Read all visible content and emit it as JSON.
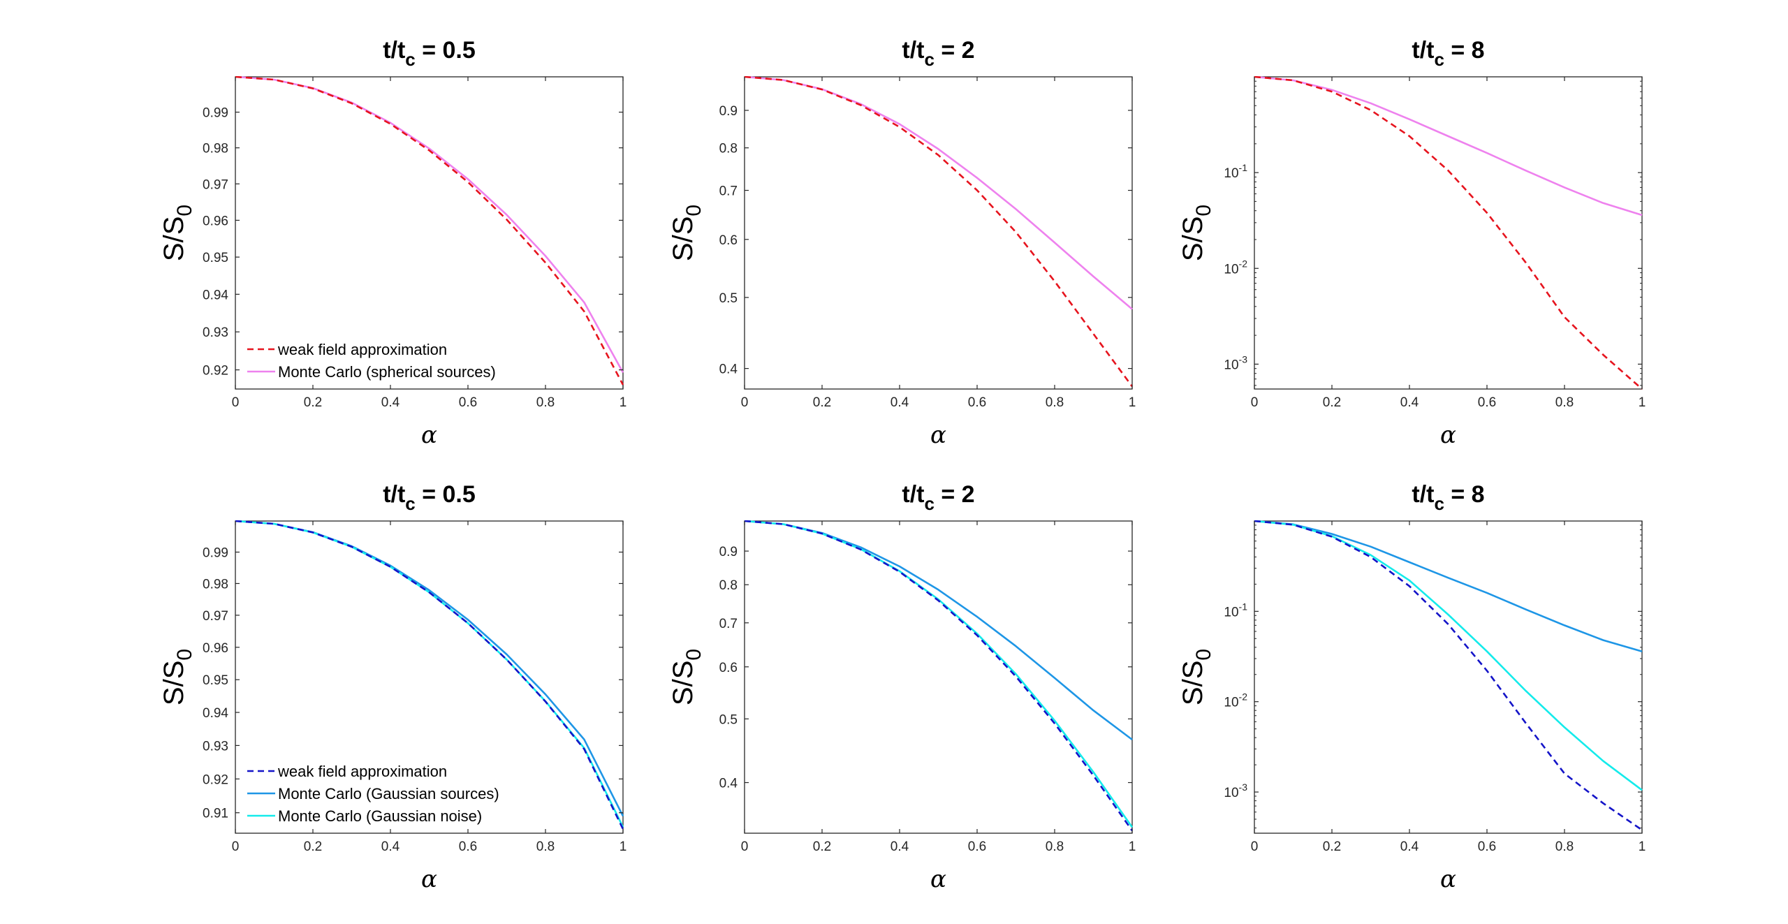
{
  "figure": {
    "xlabel": "α",
    "ylabel_main": "S/S",
    "ylabel_sub": "0",
    "title_prefix": "t/t",
    "title_sub": "c"
  },
  "chart_data": [
    {
      "type": "line",
      "title": "t/tc = 0.5",
      "title_value": "= 0.5",
      "t_over_tc": 0.5,
      "yscale": "log",
      "xlim": [
        0,
        1
      ],
      "ylim": [
        0.915,
        1.0
      ],
      "xticks": [
        0,
        0.2,
        0.4,
        0.6,
        0.8,
        1
      ],
      "xticklabels": [
        "0",
        "0.2",
        "0.4",
        "0.6",
        "0.8",
        "1"
      ],
      "yticks": [
        0.92,
        0.93,
        0.94,
        0.95,
        0.96,
        0.97,
        0.98,
        0.99
      ],
      "yticklabels": [
        "0.92",
        "0.93",
        "0.94",
        "0.95",
        "0.96",
        "0.97",
        "0.98",
        "0.99"
      ],
      "legend": "bottom-left",
      "grid": false,
      "x": [
        0,
        0.1,
        0.2,
        0.3,
        0.4,
        0.5,
        0.6,
        0.7,
        0.8,
        0.9,
        1.0
      ],
      "series": [
        {
          "name": "weak field approximation",
          "color": "#e6141e",
          "style": "dashed",
          "values": [
            1.0,
            0.9992,
            0.9967,
            0.9925,
            0.9867,
            0.9793,
            0.9705,
            0.9602,
            0.9485,
            0.9354,
            0.9161
          ]
        },
        {
          "name": "Monte Carlo (spherical sources)",
          "color": "#ee82ee",
          "style": "solid",
          "values": [
            1.0,
            0.9992,
            0.9968,
            0.9927,
            0.987,
            0.9798,
            0.9713,
            0.9615,
            0.9503,
            0.9378,
            0.9193
          ]
        }
      ]
    },
    {
      "type": "line",
      "title": "t/tc = 2",
      "title_value": "= 2",
      "t_over_tc": 2,
      "yscale": "log",
      "xlim": [
        0,
        1
      ],
      "ylim": [
        0.375,
        1.0
      ],
      "xticks": [
        0,
        0.2,
        0.4,
        0.6,
        0.8,
        1
      ],
      "xticklabels": [
        "0",
        "0.2",
        "0.4",
        "0.6",
        "0.8",
        "1"
      ],
      "yticks": [
        0.4,
        0.5,
        0.6,
        0.7,
        0.8,
        0.9
      ],
      "yticklabels": [
        "0.4",
        "0.5",
        "0.6",
        "0.7",
        "0.8",
        "0.9"
      ],
      "legend": "none",
      "grid": false,
      "x": [
        0,
        0.1,
        0.2,
        0.3,
        0.4,
        0.5,
        0.6,
        0.7,
        0.8,
        0.9,
        1.0
      ],
      "series": [
        {
          "name": "weak field approximation",
          "color": "#e6141e",
          "style": "dashed",
          "values": [
            1.0,
            0.99,
            0.961,
            0.915,
            0.854,
            0.782,
            0.7,
            0.614,
            0.526,
            0.446,
            0.378
          ]
        },
        {
          "name": "Monte Carlo (spherical sources)",
          "color": "#ee82ee",
          "style": "solid",
          "values": [
            1.0,
            0.99,
            0.962,
            0.918,
            0.862,
            0.797,
            0.728,
            0.66,
            0.594,
            0.534,
            0.482
          ]
        }
      ]
    },
    {
      "type": "line",
      "title": "t/tc = 8",
      "title_value": "= 8",
      "t_over_tc": 8,
      "yscale": "log",
      "xlim": [
        0,
        1
      ],
      "ylim": [
        0.00055,
        1.0
      ],
      "xticks": [
        0,
        0.2,
        0.4,
        0.6,
        0.8,
        1
      ],
      "xticklabels": [
        "0",
        "0.2",
        "0.4",
        "0.6",
        "0.8",
        "1"
      ],
      "yticks": [
        0.001,
        0.01,
        0.1
      ],
      "yticklabels": [
        "10-3",
        "10-2",
        "10-1"
      ],
      "yticklabel_bases": [
        "10",
        "10",
        "10"
      ],
      "yticklabel_exponents": [
        "-3",
        "-2",
        "-1"
      ],
      "legend": "none",
      "grid": false,
      "x": [
        0,
        0.1,
        0.2,
        0.3,
        0.4,
        0.5,
        0.6,
        0.7,
        0.8,
        0.9,
        1.0
      ],
      "series": [
        {
          "name": "weak field approximation",
          "color": "#e6141e",
          "style": "dashed",
          "values": [
            1.0,
            0.92,
            0.7,
            0.45,
            0.24,
            0.105,
            0.038,
            0.0115,
            0.0031,
            0.00125,
            0.00055
          ]
        },
        {
          "name": "Monte Carlo (spherical sources)",
          "color": "#ee82ee",
          "style": "solid",
          "values": [
            1.0,
            0.92,
            0.73,
            0.53,
            0.36,
            0.24,
            0.16,
            0.105,
            0.07,
            0.048,
            0.036
          ]
        }
      ]
    },
    {
      "type": "line",
      "title": "t/tc = 0.5",
      "title_value": "= 0.5",
      "t_over_tc": 0.5,
      "yscale": "log",
      "xlim": [
        0,
        1
      ],
      "ylim": [
        0.904,
        1.0
      ],
      "xticks": [
        0,
        0.2,
        0.4,
        0.6,
        0.8,
        1
      ],
      "xticklabels": [
        "0",
        "0.2",
        "0.4",
        "0.6",
        "0.8",
        "1"
      ],
      "yticks": [
        0.91,
        0.92,
        0.93,
        0.94,
        0.95,
        0.96,
        0.97,
        0.98,
        0.99
      ],
      "yticklabels": [
        "0.91",
        "0.92",
        "0.93",
        "0.94",
        "0.95",
        "0.96",
        "0.97",
        "0.98",
        "0.99"
      ],
      "legend": "bottom-left",
      "grid": false,
      "x": [
        0,
        0.1,
        0.2,
        0.3,
        0.4,
        0.5,
        0.6,
        0.7,
        0.8,
        0.9,
        1.0
      ],
      "series": [
        {
          "name": "weak field approximation",
          "color": "#1414c8",
          "style": "dashed",
          "values": [
            1.0,
            0.9991,
            0.9963,
            0.9917,
            0.9853,
            0.9772,
            0.9675,
            0.9562,
            0.9433,
            0.9289,
            0.9052
          ]
        },
        {
          "name": "Monte Carlo (Gaussian sources)",
          "color": "#1e96e6",
          "style": "solid",
          "values": [
            1.0,
            0.9991,
            0.9964,
            0.9919,
            0.9857,
            0.9779,
            0.9686,
            0.9578,
            0.9455,
            0.9318,
            0.909
          ]
        },
        {
          "name": "Monte Carlo (Gaussian noise)",
          "color": "#14ebeb",
          "style": "solid",
          "values": [
            1.0,
            0.9991,
            0.9963,
            0.9917,
            0.9853,
            0.9772,
            0.9675,
            0.9562,
            0.9434,
            0.9292,
            0.9058
          ]
        }
      ]
    },
    {
      "type": "line",
      "title": "t/tc = 2",
      "title_value": "= 2",
      "t_over_tc": 2,
      "yscale": "log",
      "xlim": [
        0,
        1
      ],
      "ylim": [
        0.335,
        1.0
      ],
      "xticks": [
        0,
        0.2,
        0.4,
        0.6,
        0.8,
        1
      ],
      "xticklabels": [
        "0",
        "0.2",
        "0.4",
        "0.6",
        "0.8",
        "1"
      ],
      "yticks": [
        0.4,
        0.5,
        0.6,
        0.7,
        0.8,
        0.9
      ],
      "yticklabels": [
        "0.4",
        "0.5",
        "0.6",
        "0.7",
        "0.8",
        "0.9"
      ],
      "legend": "none",
      "grid": false,
      "x": [
        0,
        0.1,
        0.2,
        0.3,
        0.4,
        0.5,
        0.6,
        0.7,
        0.8,
        0.9,
        1.0
      ],
      "series": [
        {
          "name": "weak field approximation",
          "color": "#1414c8",
          "style": "dashed",
          "values": [
            1.0,
            0.989,
            0.957,
            0.905,
            0.837,
            0.757,
            0.67,
            0.58,
            0.492,
            0.41,
            0.338
          ]
        },
        {
          "name": "Monte Carlo (Gaussian sources)",
          "color": "#1e96e6",
          "style": "solid",
          "values": [
            1.0,
            0.989,
            0.959,
            0.912,
            0.853,
            0.786,
            0.715,
            0.645,
            0.577,
            0.515,
            0.465
          ]
        },
        {
          "name": "Monte Carlo (Gaussian noise)",
          "color": "#14ebeb",
          "style": "solid",
          "values": [
            1.0,
            0.989,
            0.957,
            0.906,
            0.839,
            0.76,
            0.674,
            0.585,
            0.497,
            0.415,
            0.342
          ]
        }
      ]
    },
    {
      "type": "line",
      "title": "t/tc = 8",
      "title_value": "= 8",
      "t_over_tc": 8,
      "yscale": "log",
      "xlim": [
        0,
        1
      ],
      "ylim": [
        0.00035,
        1.0
      ],
      "xticks": [
        0,
        0.2,
        0.4,
        0.6,
        0.8,
        1
      ],
      "xticklabels": [
        "0",
        "0.2",
        "0.4",
        "0.6",
        "0.8",
        "1"
      ],
      "yticks": [
        0.001,
        0.01,
        0.1
      ],
      "yticklabels": [
        "10-3",
        "10-2",
        "10-1"
      ],
      "yticklabel_bases": [
        "10",
        "10",
        "10"
      ],
      "yticklabel_exponents": [
        "-3",
        "-2",
        "-1"
      ],
      "legend": "none",
      "grid": false,
      "x": [
        0,
        0.1,
        0.2,
        0.3,
        0.4,
        0.5,
        0.6,
        0.7,
        0.8,
        0.9,
        1.0
      ],
      "series": [
        {
          "name": "weak field approximation",
          "color": "#1414c8",
          "style": "dashed",
          "values": [
            1.0,
            0.91,
            0.67,
            0.4,
            0.19,
            0.072,
            0.022,
            0.0058,
            0.0016,
            0.00075,
            0.00038
          ]
        },
        {
          "name": "Monte Carlo (Gaussian sources)",
          "color": "#1e96e6",
          "style": "solid",
          "values": [
            1.0,
            0.92,
            0.72,
            0.52,
            0.35,
            0.235,
            0.16,
            0.105,
            0.07,
            0.048,
            0.036
          ]
        },
        {
          "name": "Monte Carlo (Gaussian noise)",
          "color": "#14ebeb",
          "style": "solid",
          "values": [
            1.0,
            0.91,
            0.68,
            0.42,
            0.22,
            0.092,
            0.036,
            0.0132,
            0.0052,
            0.0022,
            0.00105
          ]
        }
      ]
    }
  ]
}
